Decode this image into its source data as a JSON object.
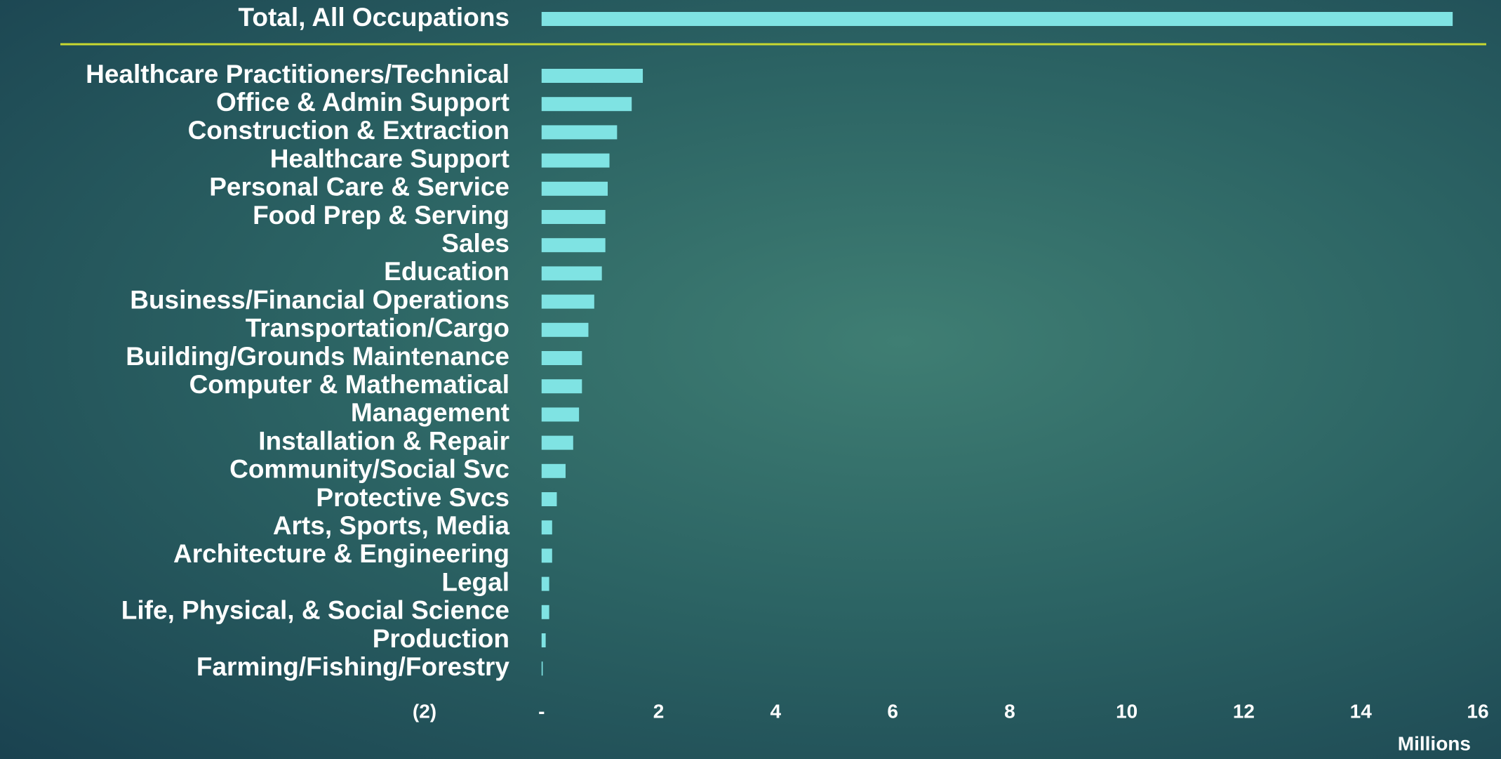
{
  "chart_data": {
    "type": "bar",
    "orientation": "horizontal",
    "categories": [
      "Total, All Occupations",
      "Healthcare Practitioners/Technical",
      "Office & Admin Support",
      "Construction & Extraction",
      "Healthcare Support",
      "Personal Care & Service",
      "Food Prep & Serving",
      "Sales",
      "Education",
      "Business/Financial Operations",
      "Transportation/Cargo",
      "Building/Grounds Maintenance",
      "Computer & Mathematical",
      "Management",
      "Installation & Repair",
      "Community/Social Svc",
      "Protective Svcs",
      "Arts, Sports, Media",
      "Architecture & Engineering",
      "Legal",
      "Life, Physical, & Social Science",
      "Production",
      "Farming/Fishing/Forestry"
    ],
    "values": [
      15.57,
      1.73,
      1.54,
      1.29,
      1.16,
      1.13,
      1.09,
      1.09,
      1.03,
      0.9,
      0.8,
      0.69,
      0.69,
      0.64,
      0.54,
      0.41,
      0.26,
      0.18,
      0.18,
      0.13,
      0.13,
      0.07,
      0.02
    ],
    "color": "#7fe3e3",
    "xlim": [
      -2,
      16
    ],
    "xticks": [
      {
        "value": -2,
        "label": "(2)"
      },
      {
        "value": 0,
        "label": "-"
      },
      2,
      4,
      6,
      8,
      10,
      12,
      14,
      16
    ],
    "xlabel": "Millions"
  }
}
